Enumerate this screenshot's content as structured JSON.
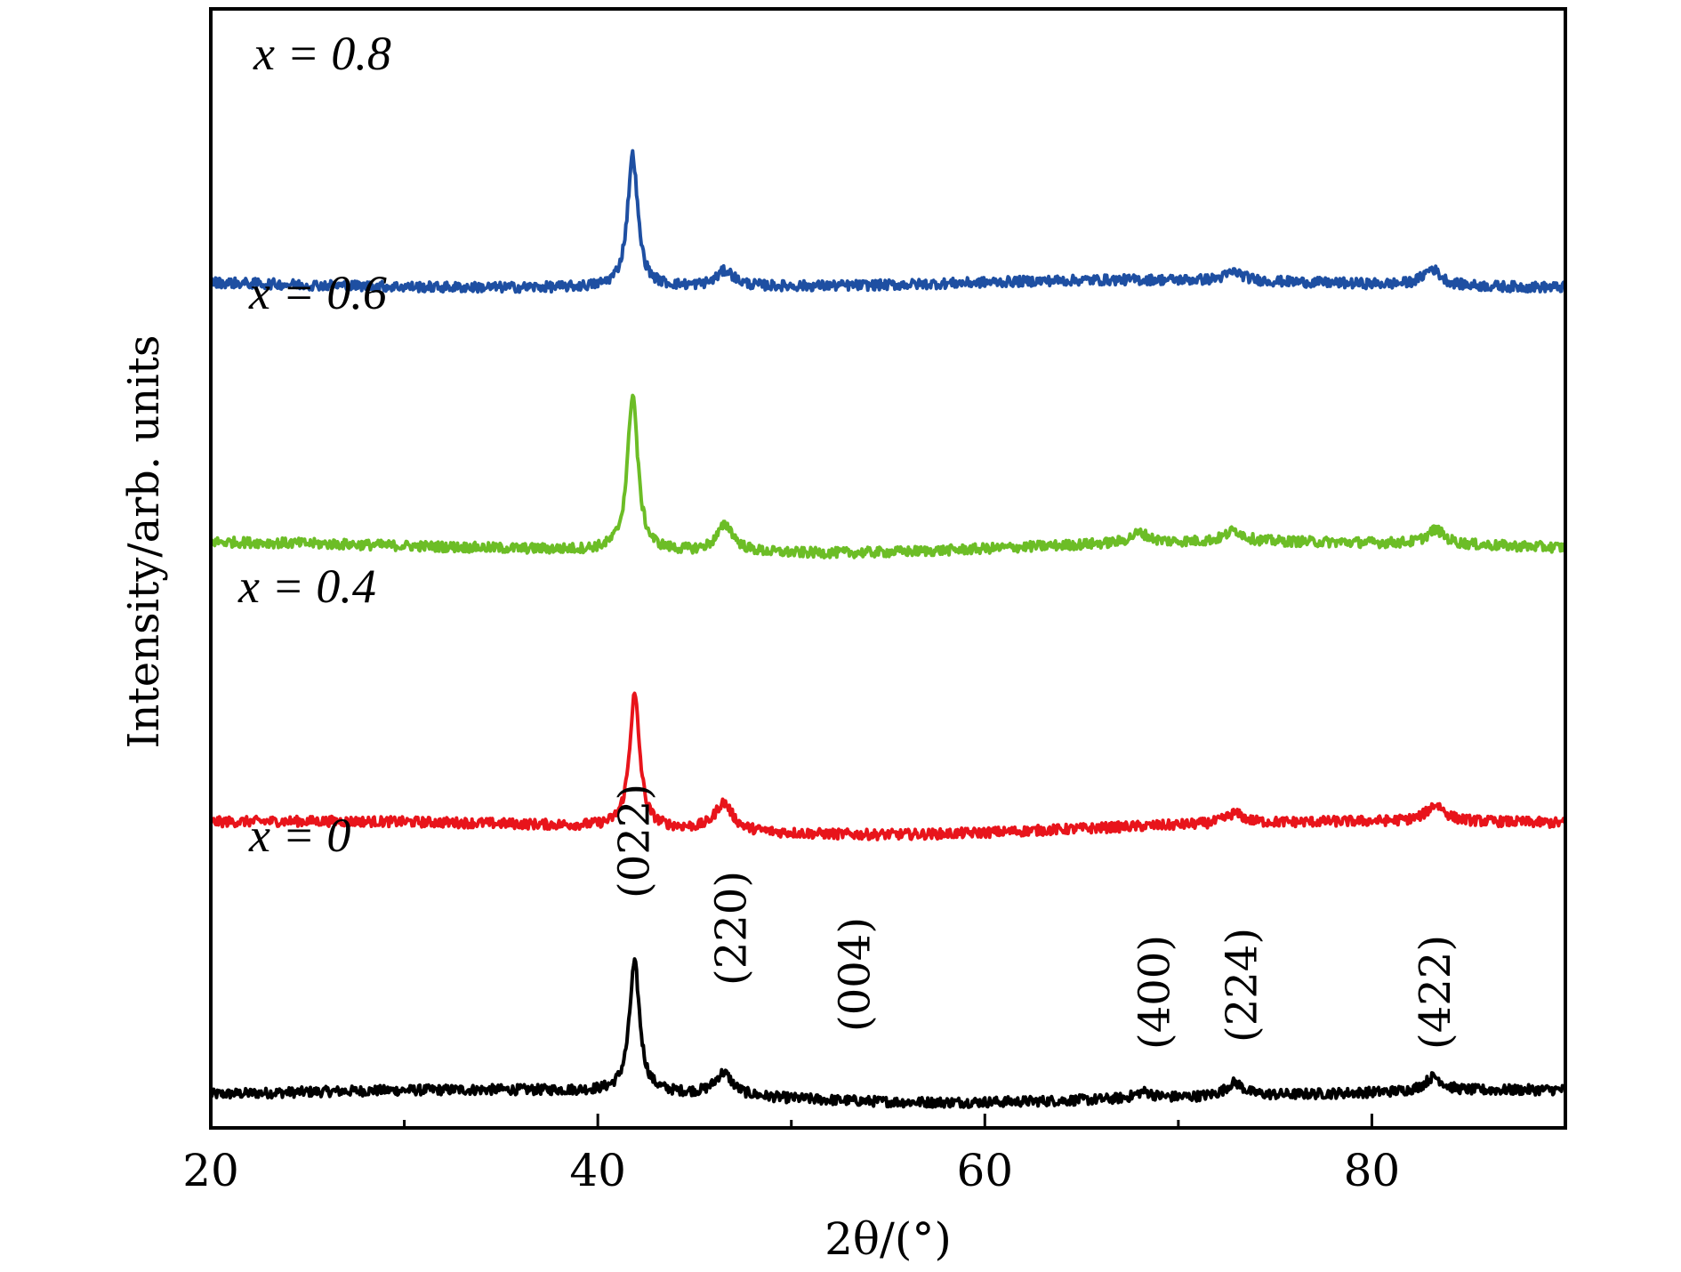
{
  "chart_data": {
    "type": "line",
    "title": "",
    "xlabel": "2θ/(°)",
    "ylabel": "Intensity/arb. units",
    "xlim": [
      20,
      90
    ],
    "ylim": [
      0,
      1
    ],
    "x_ticks": [
      "20",
      "40",
      "60",
      "80"
    ],
    "x_minor_ticks": [
      30,
      50,
      70
    ],
    "grid": false,
    "legend": "none",
    "series": [
      {
        "name": "x = 0",
        "color": "#000000",
        "baseline": 0.03,
        "peaks": [
          [
            41.9,
            0.115
          ],
          [
            46.5,
            0.02
          ],
          [
            68.2,
            0.006
          ],
          [
            72.9,
            0.012
          ],
          [
            83.2,
            0.013
          ]
        ]
      },
      {
        "name": "x = 0.4",
        "color": "#e8141b",
        "baseline": 0.27,
        "peaks": [
          [
            41.9,
            0.118
          ],
          [
            46.5,
            0.025
          ],
          [
            72.9,
            0.009
          ],
          [
            83.3,
            0.015
          ]
        ]
      },
      {
        "name": "x = 0.6",
        "color": "#6cbd26",
        "baseline": 0.52,
        "peaks": [
          [
            41.8,
            0.14
          ],
          [
            46.6,
            0.024
          ],
          [
            68.0,
            0.009
          ],
          [
            72.9,
            0.01
          ],
          [
            83.3,
            0.013
          ]
        ]
      },
      {
        "name": "x = 0.8",
        "color": "#1e4fa2",
        "baseline": 0.755,
        "peaks": [
          [
            41.8,
            0.118
          ],
          [
            46.6,
            0.014
          ],
          [
            72.9,
            0.008
          ],
          [
            83.1,
            0.015
          ]
        ]
      }
    ],
    "annotations": [
      {
        "text": "(022)",
        "x": 41.9
      },
      {
        "text": "(220)",
        "x": 46.9
      },
      {
        "text": "(004)",
        "x": 53.3
      },
      {
        "text": "(400)",
        "x": 68.8
      },
      {
        "text": "(224)",
        "x": 73.3
      },
      {
        "text": "(422)",
        "x": 83.3
      }
    ]
  }
}
